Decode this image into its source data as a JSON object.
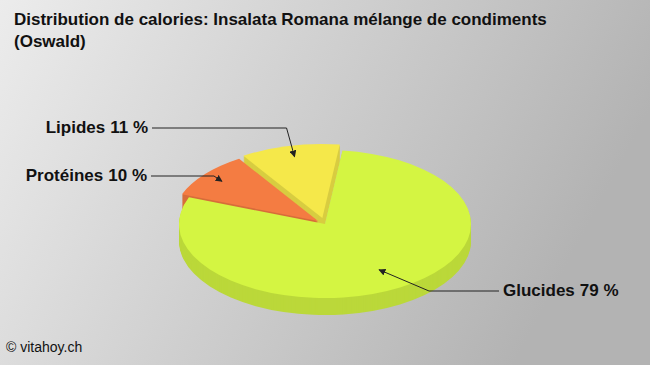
{
  "chart_data": {
    "type": "pie",
    "title": "Distribution de calories: Insalata Romana mélange de condiments (Oswald)",
    "categories": [
      "Glucides",
      "Protéines",
      "Lipides"
    ],
    "values": [
      79,
      10,
      11
    ],
    "value_labels": [
      "79 %",
      "10 %",
      "11 %"
    ],
    "colors": [
      "#d4f542",
      "#f47c42",
      "#f5e84a"
    ],
    "data_labels": true,
    "source": "© vitahoy.ch"
  }
}
